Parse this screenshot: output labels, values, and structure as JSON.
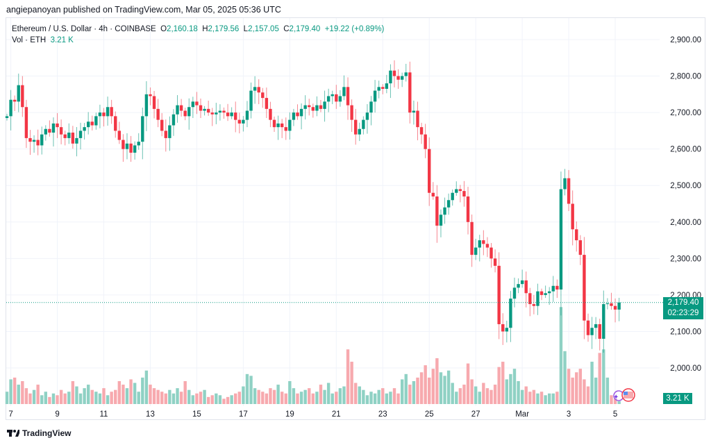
{
  "publisher_line": "angiepanoyan published on TradingView.com, Mar 05, 2025 05:36 UTC",
  "legend": {
    "symbol": "Ethereum / U.S. Dollar · 4h · COINBASE",
    "o_label": "O",
    "o": "2,160.18",
    "h_label": "H",
    "h": "2,179.56",
    "l_label": "L",
    "l": "2,157.05",
    "c_label": "C",
    "c": "2,179.40",
    "change": "+19.22 (+0.89%)",
    "vol_label": "Vol · ETH",
    "vol": "3.21 K"
  },
  "price_label": {
    "price": "2,179.40",
    "countdown": "02:23:29"
  },
  "volume_label": "3.21 K",
  "footer": {
    "brand": "TradingView"
  },
  "colors": {
    "up": "#089981",
    "down": "#f23645",
    "up_vol": "#8fd1c4",
    "down_vol": "#f7a9ae",
    "grid": "#f0f3fa"
  },
  "chart_data": {
    "type": "candlestick",
    "interval": "4h",
    "first_open": 2685,
    "ylim": [
      1930,
      2950
    ],
    "y_ticks": [
      "2,900.00",
      "2,800.00",
      "2,700.00",
      "2,600.00",
      "2,500.00",
      "2,400.00",
      "2,300.00",
      "2,200.00",
      "2,100.00",
      "2,000.00"
    ],
    "y_tick_values": [
      2900,
      2800,
      2700,
      2600,
      2500,
      2400,
      2300,
      2200,
      2100,
      2000
    ],
    "x_ticks": [
      "7",
      "9",
      "11",
      "13",
      "15",
      "17",
      "19",
      "21",
      "23",
      "25",
      "27",
      "Mar",
      "3",
      "5"
    ],
    "x_tick_candle_index": [
      1,
      13,
      25,
      37,
      49,
      61,
      73,
      85,
      97,
      109,
      121,
      133,
      145,
      157
    ],
    "current_price": 2179.4,
    "close": [
      2690,
      2735,
      2730,
      2775,
      2715,
      2630,
      2620,
      2625,
      2610,
      2640,
      2655,
      2645,
      2670,
      2660,
      2640,
      2630,
      2645,
      2615,
      2630,
      2650,
      2660,
      2675,
      2665,
      2690,
      2700,
      2690,
      2715,
      2690,
      2650,
      2625,
      2600,
      2615,
      2590,
      2610,
      2620,
      2690,
      2750,
      2745,
      2710,
      2680,
      2650,
      2630,
      2665,
      2695,
      2720,
      2705,
      2690,
      2715,
      2730,
      2720,
      2705,
      2710,
      2700,
      2695,
      2700,
      2705,
      2700,
      2690,
      2700,
      2680,
      2670,
      2680,
      2705,
      2760,
      2770,
      2755,
      2740,
      2710,
      2680,
      2660,
      2670,
      2660,
      2650,
      2680,
      2700,
      2690,
      2710,
      2720,
      2715,
      2705,
      2720,
      2710,
      2730,
      2745,
      2750,
      2730,
      2745,
      2770,
      2720,
      2680,
      2640,
      2655,
      2680,
      2700,
      2730,
      2760,
      2770,
      2765,
      2780,
      2815,
      2800,
      2790,
      2800,
      2810,
      2700,
      2705,
      2660,
      2640,
      2600,
      2480,
      2470,
      2390,
      2420,
      2440,
      2460,
      2480,
      2490,
      2485,
      2470,
      2400,
      2310,
      2330,
      2350,
      2340,
      2330,
      2300,
      2280,
      2120,
      2100,
      2110,
      2190,
      2220,
      2230,
      2240,
      2205,
      2175,
      2170,
      2210,
      2200,
      2205,
      2210,
      2225,
      2215,
      2490,
      2520,
      2450,
      2380,
      2350,
      2310,
      2130,
      2090,
      2110,
      2120,
      2080,
      2175,
      2177,
      2170,
      2160,
      2179.4
    ],
    "volume_k": [
      14,
      28,
      30,
      22,
      26,
      18,
      12,
      16,
      22,
      10,
      14,
      8,
      12,
      10,
      16,
      12,
      14,
      26,
      20,
      12,
      18,
      22,
      16,
      14,
      12,
      18,
      10,
      14,
      16,
      26,
      22,
      18,
      28,
      24,
      14,
      30,
      38,
      22,
      18,
      16,
      14,
      12,
      16,
      12,
      18,
      14,
      26,
      16,
      10,
      12,
      14,
      16,
      8,
      10,
      12,
      10,
      6,
      8,
      10,
      12,
      14,
      20,
      34,
      32,
      18,
      16,
      14,
      12,
      18,
      16,
      22,
      14,
      12,
      26,
      18,
      12,
      14,
      16,
      18,
      12,
      14,
      22,
      16,
      24,
      12,
      14,
      18,
      20,
      62,
      48,
      24,
      20,
      16,
      10,
      14,
      12,
      16,
      18,
      12,
      14,
      18,
      12,
      28,
      34,
      22,
      26,
      30,
      36,
      44,
      30,
      40,
      52,
      36,
      32,
      38,
      24,
      14,
      18,
      22,
      46,
      28,
      20,
      14,
      24,
      18,
      16,
      22,
      42,
      48,
      28,
      34,
      40,
      26,
      16,
      20,
      14,
      16,
      12,
      14,
      10,
      12,
      12,
      14,
      110,
      60,
      40,
      30,
      36,
      40,
      28,
      20,
      48,
      30,
      58,
      62,
      30,
      10,
      6,
      3.21
    ]
  }
}
